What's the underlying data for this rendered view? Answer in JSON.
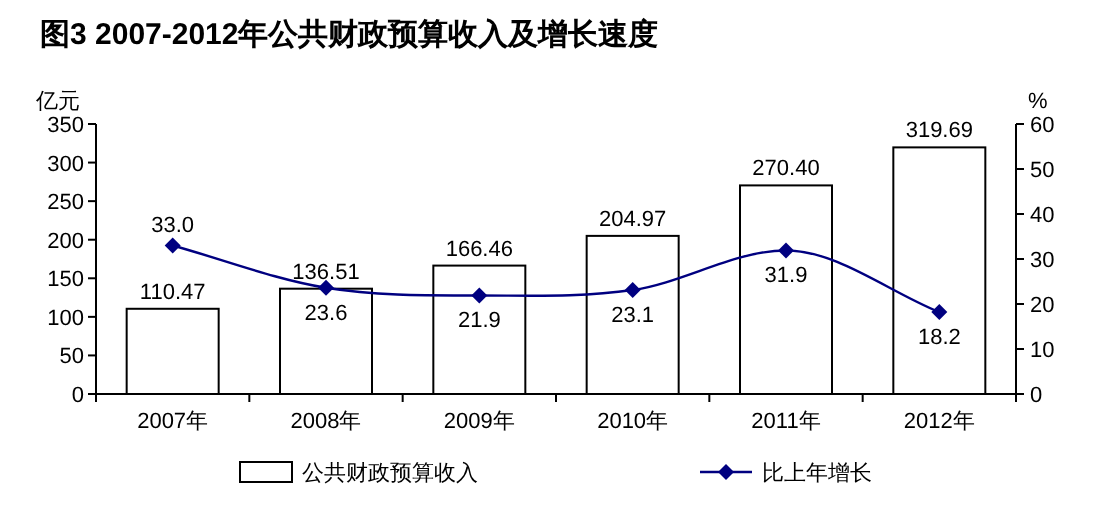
{
  "chart_data": {
    "type": "bar",
    "title": "图3        2007-2012年公共财政预算收入及增长速度",
    "categories": [
      "2007年",
      "2008年",
      "2009年",
      "2010年",
      "2011年",
      "2012年"
    ],
    "ylabel": "亿元",
    "y2label": "%",
    "ylim": [
      0,
      350
    ],
    "yticks": [
      0,
      50,
      100,
      150,
      200,
      250,
      300,
      350
    ],
    "y2lim": [
      0,
      60
    ],
    "y2ticks": [
      0,
      10,
      20,
      30,
      40,
      50,
      60
    ],
    "legend": "bottom",
    "series": [
      {
        "name": "公共财政预算收入",
        "color": "#ffffff",
        "values": [
          110.47,
          136.51,
          166.46,
          204.97,
          270.4,
          319.69
        ],
        "value_labels": [
          "110.47",
          "136.51",
          "166.46",
          "204.97",
          "270.40",
          "319.69"
        ]
      },
      {
        "name": "比上年增长",
        "type": "line",
        "axis": "y2",
        "color": "#000080",
        "marker": "diamond",
        "values": [
          33.0,
          23.6,
          21.9,
          23.1,
          31.9,
          18.2
        ],
        "value_labels": [
          "33.0",
          "23.6",
          "21.9",
          "23.1",
          "31.9",
          "18.2"
        ]
      }
    ]
  }
}
